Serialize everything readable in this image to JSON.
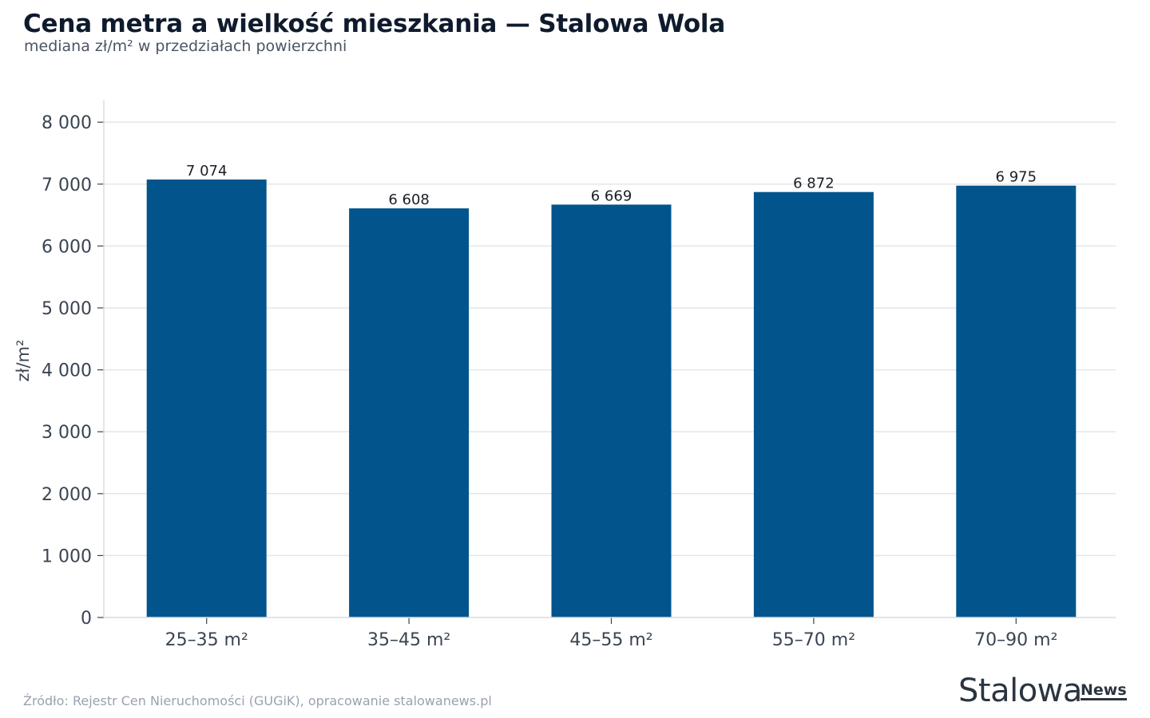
{
  "title": "Cena metra a wielkość mieszkania — Stalowa Wola",
  "subtitle": "mediana zł/m² w przedziałach powierzchni",
  "source": "Źródło: Rejestr Cen Nieruchomości (GUGiK), opracowanie stalowanews.pl",
  "logo": {
    "main": "Stalowa",
    "sub": "News"
  },
  "colors": {
    "bar": "#02548c",
    "grid": "#e3e6ea",
    "axis": "#d9dce0",
    "tick_text": "#3a4452",
    "label_text": "#1a1f26"
  },
  "chart_data": {
    "type": "bar",
    "title": "Cena metra a wielkość mieszkania — Stalowa Wola",
    "subtitle": "mediana zł/m² w przedziałach powierzchni",
    "xlabel": "",
    "ylabel": "zł/m²",
    "categories": [
      "25–35 m²",
      "35–45 m²",
      "45–55 m²",
      "55–70 m²",
      "70–90 m²"
    ],
    "values": [
      7074,
      6608,
      6669,
      6872,
      6975
    ],
    "value_labels": [
      "7 074",
      "6 608",
      "6 669",
      "6 872",
      "6 975"
    ],
    "yticks": [
      0,
      1000,
      2000,
      3000,
      4000,
      5000,
      6000,
      7000,
      8000
    ],
    "ytick_labels": [
      "0",
      "1 000",
      "2 000",
      "3 000",
      "4 000",
      "5 000",
      "6 000",
      "7 000",
      "8 000"
    ],
    "ylim": [
      0,
      8350
    ],
    "grid": true
  }
}
